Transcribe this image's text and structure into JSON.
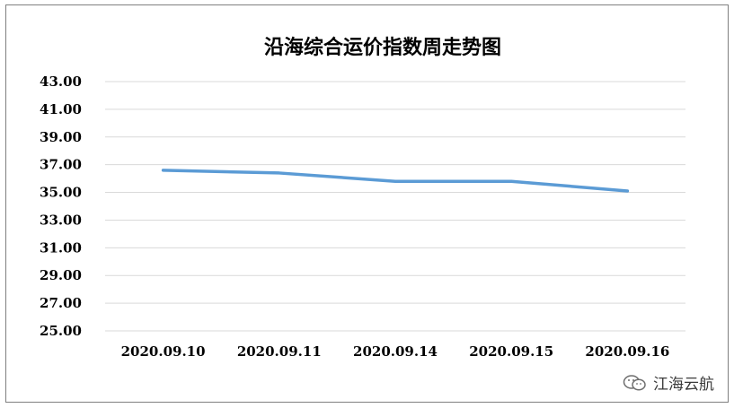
{
  "chart_data": {
    "type": "line",
    "title": "沿海综合运价指数周走势图",
    "xlabel": "",
    "ylabel": "",
    "categories": [
      "2020.09.10",
      "2020.09.11",
      "2020.09.14",
      "2020.09.15",
      "2020.09.16"
    ],
    "series": [
      {
        "values": [
          36.6,
          36.4,
          35.8,
          35.8,
          35.1
        ]
      }
    ],
    "ylim": [
      25.0,
      43.0
    ],
    "yticks": [
      "25.00",
      "27.00",
      "29.00",
      "31.00",
      "33.00",
      "35.00",
      "37.00",
      "39.00",
      "41.00",
      "43.00"
    ],
    "grid": true,
    "line_color": "#5b9bd5"
  },
  "watermark": {
    "text": "江海云航",
    "icon": "wechat-icon"
  }
}
